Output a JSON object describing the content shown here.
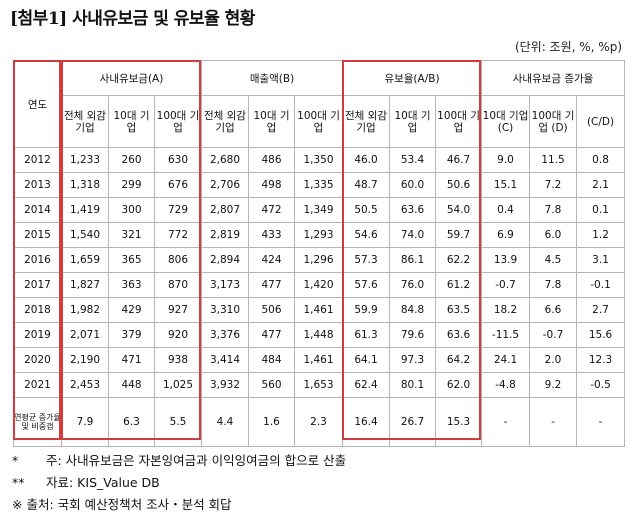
{
  "title": "[첨부1] 사내유보금 및 유보율 현황",
  "unit": "(단위: 조원, %, %p)",
  "header": {
    "year": "연도",
    "groups": [
      "사내유보금(A)",
      "매출액(B)",
      "유보율(A/B)",
      "사내유보금 증가율"
    ],
    "sub_all": "전체 외감 기업",
    "sub_top10": "10대 기업",
    "sub_top100": "100대 기업",
    "growth_sub": [
      "10대 기업 (C)",
      "100대 기업 (D)",
      "(C/D)"
    ]
  },
  "rows": [
    {
      "year": "2012",
      "a_all": "1,233",
      "a_10": "260",
      "a_100": "630",
      "b_all": "2,680",
      "b_10": "486",
      "b_100": "1,350",
      "r_all": "46.0",
      "r_10": "53.4",
      "r_100": "46.7",
      "g_c": "9.0",
      "g_d": "11.5",
      "g_cd": "0.8"
    },
    {
      "year": "2013",
      "a_all": "1,318",
      "a_10": "299",
      "a_100": "676",
      "b_all": "2,706",
      "b_10": "498",
      "b_100": "1,335",
      "r_all": "48.7",
      "r_10": "60.0",
      "r_100": "50.6",
      "g_c": "15.1",
      "g_d": "7.2",
      "g_cd": "2.1"
    },
    {
      "year": "2014",
      "a_all": "1,419",
      "a_10": "300",
      "a_100": "729",
      "b_all": "2,807",
      "b_10": "472",
      "b_100": "1,349",
      "r_all": "50.5",
      "r_10": "63.6",
      "r_100": "54.0",
      "g_c": "0.4",
      "g_d": "7.8",
      "g_cd": "0.1"
    },
    {
      "year": "2015",
      "a_all": "1,540",
      "a_10": "321",
      "a_100": "772",
      "b_all": "2,819",
      "b_10": "433",
      "b_100": "1,293",
      "r_all": "54.6",
      "r_10": "74.0",
      "r_100": "59.7",
      "g_c": "6.9",
      "g_d": "6.0",
      "g_cd": "1.2"
    },
    {
      "year": "2016",
      "a_all": "1,659",
      "a_10": "365",
      "a_100": "806",
      "b_all": "2,894",
      "b_10": "424",
      "b_100": "1,296",
      "r_all": "57.3",
      "r_10": "86.1",
      "r_100": "62.2",
      "g_c": "13.9",
      "g_d": "4.5",
      "g_cd": "3.1"
    },
    {
      "year": "2017",
      "a_all": "1,827",
      "a_10": "363",
      "a_100": "870",
      "b_all": "3,173",
      "b_10": "477",
      "b_100": "1,420",
      "r_all": "57.6",
      "r_10": "76.0",
      "r_100": "61.2",
      "g_c": "-0.7",
      "g_d": "7.8",
      "g_cd": "-0.1"
    },
    {
      "year": "2018",
      "a_all": "1,982",
      "a_10": "429",
      "a_100": "927",
      "b_all": "3,310",
      "b_10": "506",
      "b_100": "1,461",
      "r_all": "59.9",
      "r_10": "84.8",
      "r_100": "63.5",
      "g_c": "18.2",
      "g_d": "6.6",
      "g_cd": "2.7"
    },
    {
      "year": "2019",
      "a_all": "2,071",
      "a_10": "379",
      "a_100": "920",
      "b_all": "3,376",
      "b_10": "477",
      "b_100": "1,448",
      "r_all": "61.3",
      "r_10": "79.6",
      "r_100": "63.6",
      "g_c": "-11.5",
      "g_d": "-0.7",
      "g_cd": "15.6"
    },
    {
      "year": "2020",
      "a_all": "2,190",
      "a_10": "471",
      "a_100": "938",
      "b_all": "3,414",
      "b_10": "484",
      "b_100": "1,461",
      "r_all": "64.1",
      "r_10": "97.3",
      "r_100": "64.2",
      "g_c": "24.1",
      "g_d": "2.0",
      "g_cd": "12.3"
    },
    {
      "year": "2021",
      "a_all": "2,453",
      "a_10": "448",
      "a_100": "1,025",
      "b_all": "3,932",
      "b_10": "560",
      "b_100": "1,653",
      "r_all": "62.4",
      "r_10": "80.1",
      "r_100": "62.0",
      "g_c": "-4.8",
      "g_d": "9.2",
      "g_cd": "-0.5"
    }
  ],
  "last_row": {
    "label": "연평균 증가율 및 비중갭",
    "a_all": "7.9",
    "a_10": "6.3",
    "a_100": "5.5",
    "b_all": "4.4",
    "b_10": "1.6",
    "b_100": "2.3",
    "r_all": "16.4",
    "r_10": "26.7",
    "r_100": "15.3",
    "g_c": "-",
    "g_d": "-",
    "g_cd": "-"
  },
  "notes": {
    "n1_sym": "*",
    "n1": "주: 사내유보금은 자본잉여금과 이익잉여금의 합으로 산출",
    "n2_sym": "**",
    "n2": "자료: KIS_Value DB",
    "n3": "※ 출처: 국회 예산정책처 조사・분석 회답"
  },
  "colors": {
    "highlight_border": "#d23c3c",
    "grid": "#b5b5b5"
  }
}
